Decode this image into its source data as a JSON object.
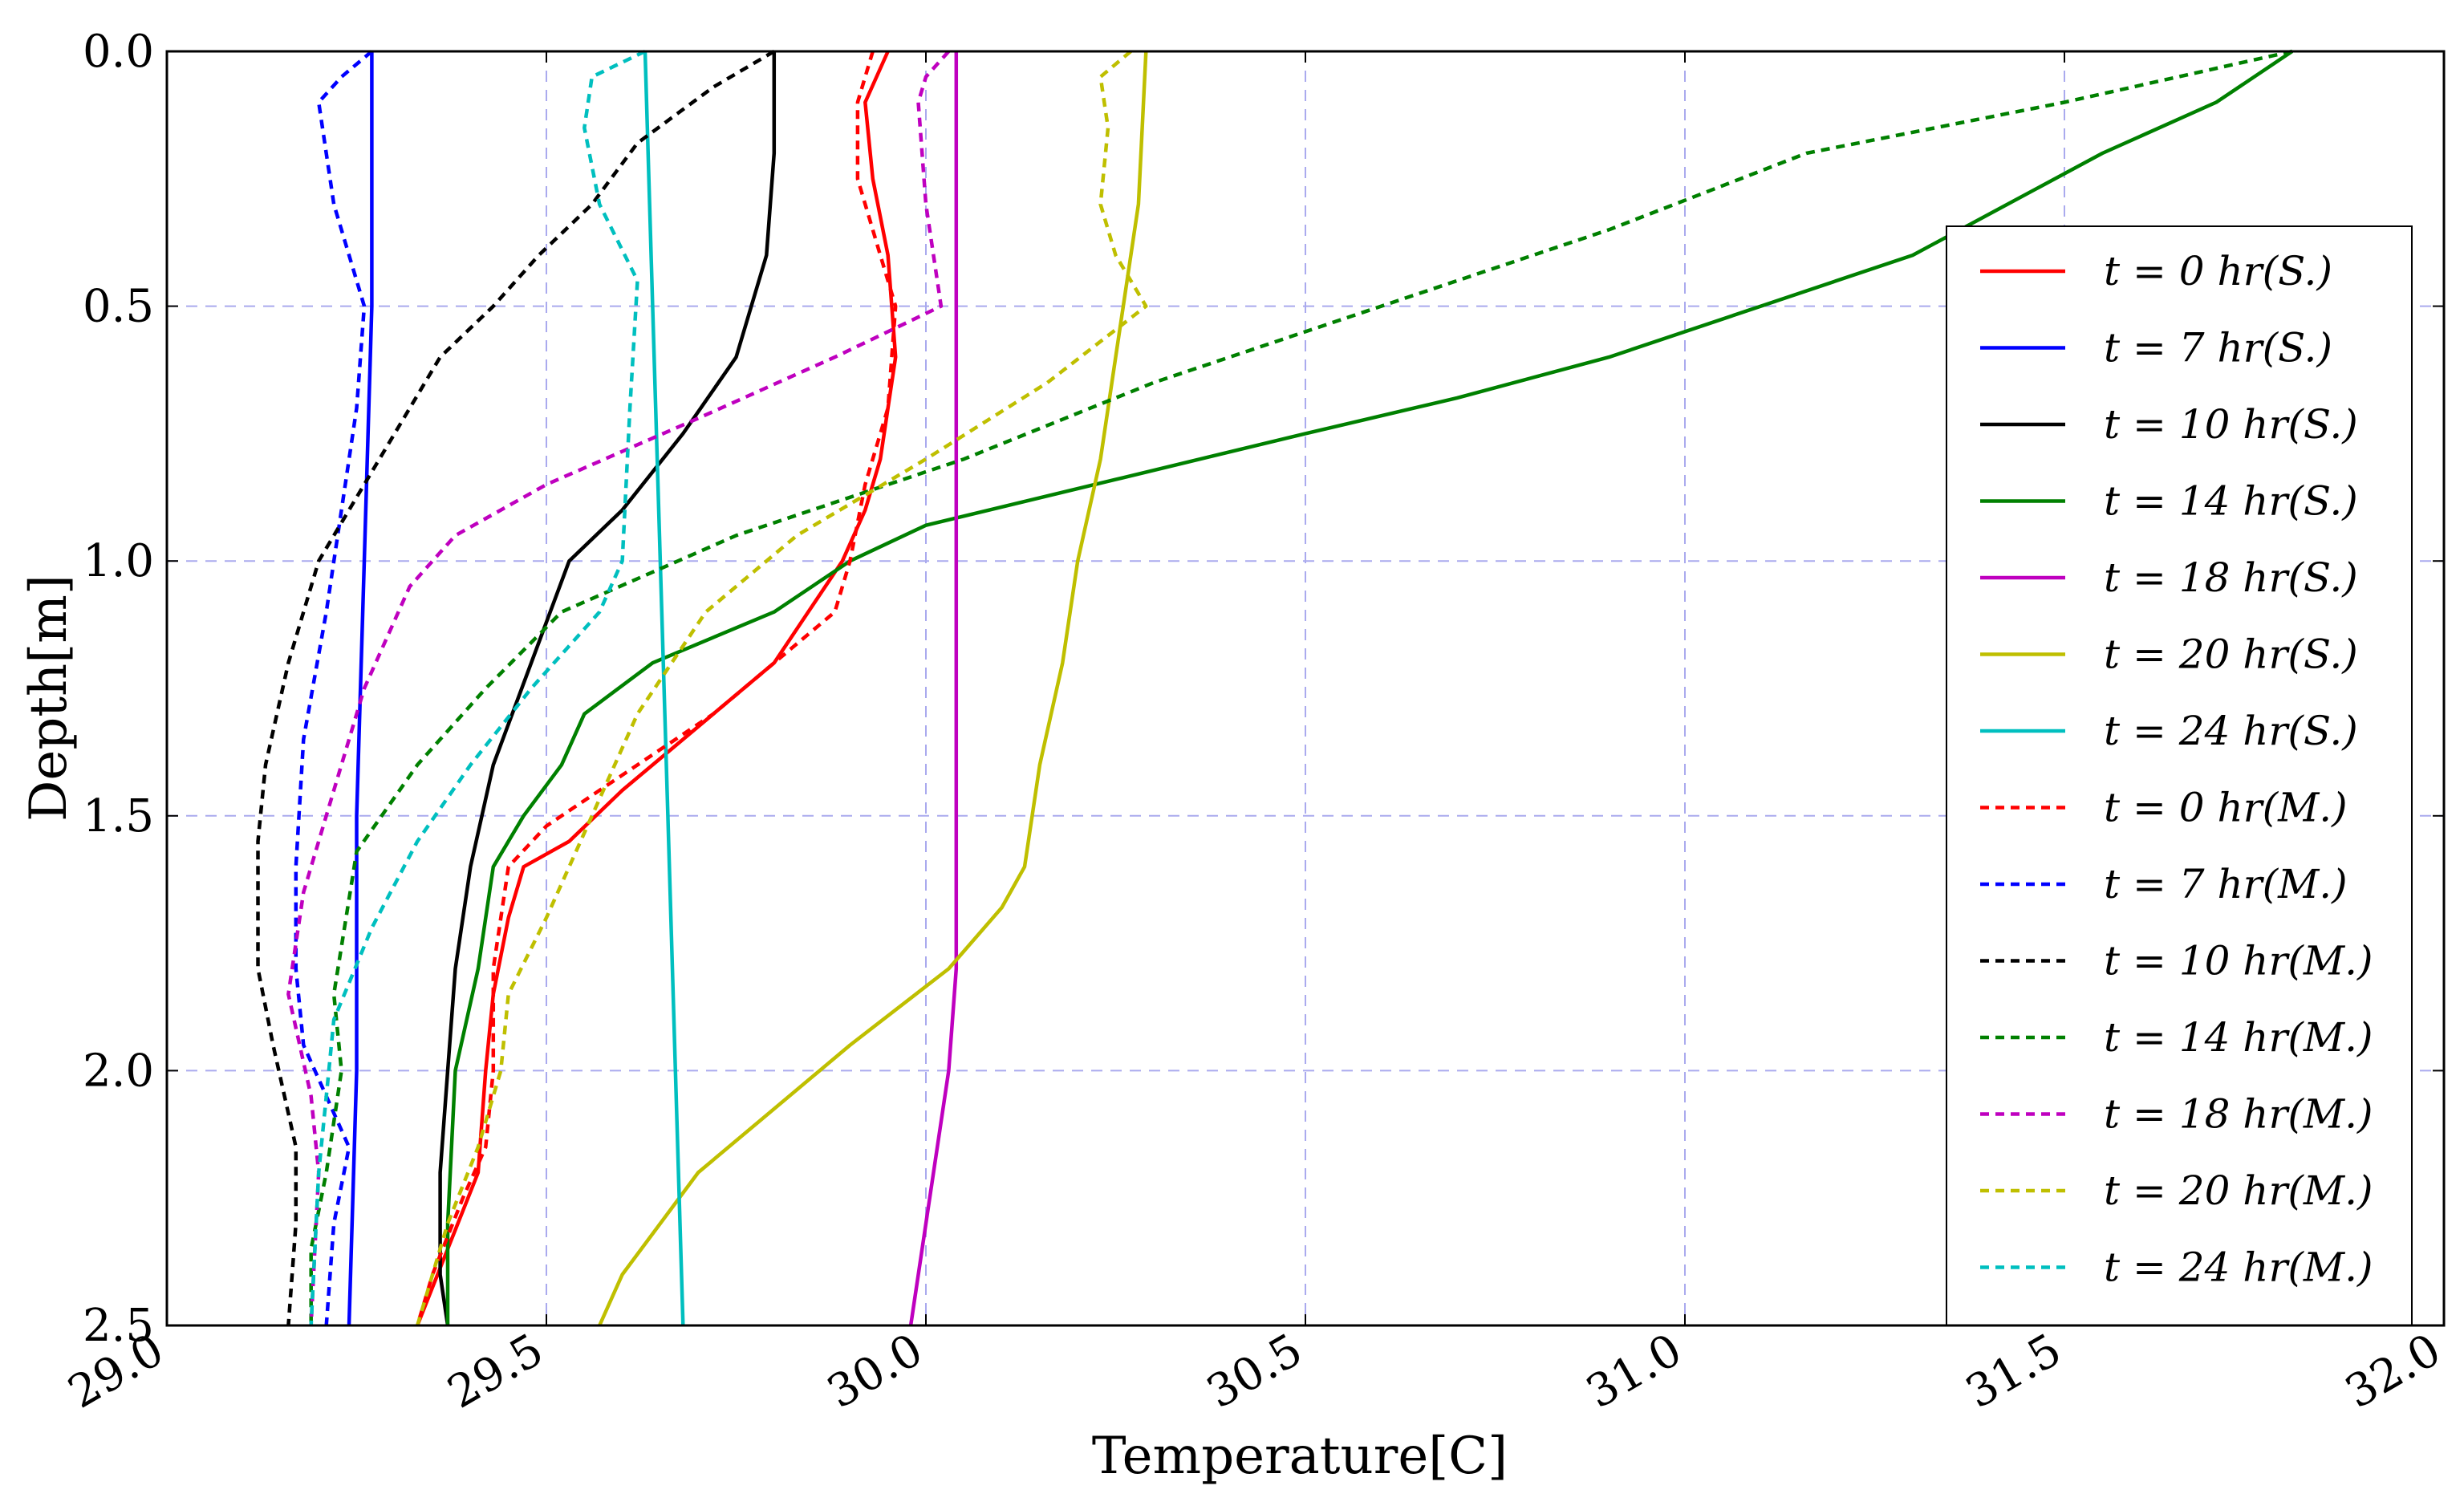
{
  "chart_data": {
    "type": "line",
    "title": "",
    "xlabel": "Temperature[C]",
    "ylabel": "Depth[m]",
    "xlim": [
      29.0,
      32.0
    ],
    "ylim": [
      0.0,
      2.5
    ],
    "y_inverted": true,
    "grid": true,
    "legend_position": "right",
    "x_ticks": [
      "29.0",
      "29.5",
      "30.0",
      "30.5",
      "31.0",
      "31.5",
      "32.0"
    ],
    "y_ticks": [
      "0.0",
      "0.5",
      "1.0",
      "1.5",
      "2.0",
      "2.5"
    ],
    "colors": {
      "red": "#ff0000",
      "blue": "#0000ff",
      "black": "#000000",
      "green": "#008000",
      "magenta": "#bf00bf",
      "olive": "#bfbf00",
      "cyan": "#00bfbf",
      "grid": "#aaaaee",
      "frame": "#000000"
    },
    "series": [
      {
        "name": "t = 0 hr(S.)",
        "color": "red",
        "style": "solid",
        "points": [
          [
            29.95,
            0.0
          ],
          [
            29.92,
            0.1
          ],
          [
            29.93,
            0.25
          ],
          [
            29.95,
            0.4
          ],
          [
            29.96,
            0.6
          ],
          [
            29.94,
            0.8
          ],
          [
            29.92,
            0.9
          ],
          [
            29.89,
            1.0
          ],
          [
            29.8,
            1.2
          ],
          [
            29.68,
            1.35
          ],
          [
            29.6,
            1.45
          ],
          [
            29.53,
            1.55
          ],
          [
            29.47,
            1.6
          ],
          [
            29.45,
            1.7
          ],
          [
            29.43,
            1.85
          ],
          [
            29.42,
            2.0
          ],
          [
            29.41,
            2.2
          ],
          [
            29.37,
            2.35
          ],
          [
            29.33,
            2.5
          ]
        ]
      },
      {
        "name": "t = 7 hr(S.)",
        "color": "blue",
        "style": "solid",
        "points": [
          [
            29.27,
            0.0
          ],
          [
            29.27,
            0.5
          ],
          [
            29.26,
            1.0
          ],
          [
            29.25,
            1.5
          ],
          [
            29.25,
            2.0
          ],
          [
            29.24,
            2.5
          ]
        ]
      },
      {
        "name": "t = 10 hr(S.)",
        "color": "black",
        "style": "solid",
        "points": [
          [
            29.8,
            0.0
          ],
          [
            29.8,
            0.2
          ],
          [
            29.79,
            0.4
          ],
          [
            29.75,
            0.6
          ],
          [
            29.68,
            0.75
          ],
          [
            29.6,
            0.9
          ],
          [
            29.53,
            1.0
          ],
          [
            29.48,
            1.2
          ],
          [
            29.43,
            1.4
          ],
          [
            29.4,
            1.6
          ],
          [
            29.38,
            1.8
          ],
          [
            29.37,
            2.0
          ],
          [
            29.36,
            2.2
          ],
          [
            29.36,
            2.4
          ],
          [
            29.37,
            2.5
          ]
        ]
      },
      {
        "name": "t = 14 hr(S.)",
        "color": "green",
        "style": "solid",
        "points": [
          [
            31.8,
            0.0
          ],
          [
            31.7,
            0.1
          ],
          [
            31.55,
            0.2
          ],
          [
            31.3,
            0.4
          ],
          [
            31.1,
            0.5
          ],
          [
            30.9,
            0.6
          ],
          [
            30.7,
            0.68
          ],
          [
            30.5,
            0.75
          ],
          [
            30.25,
            0.84
          ],
          [
            30.0,
            0.93
          ],
          [
            29.9,
            1.0
          ],
          [
            29.8,
            1.1
          ],
          [
            29.64,
            1.2
          ],
          [
            29.55,
            1.3
          ],
          [
            29.52,
            1.4
          ],
          [
            29.47,
            1.5
          ],
          [
            29.43,
            1.6
          ],
          [
            29.41,
            1.8
          ],
          [
            29.38,
            2.0
          ],
          [
            29.37,
            2.3
          ],
          [
            29.37,
            2.5
          ]
        ]
      },
      {
        "name": "t = 18 hr(S.)",
        "color": "magenta",
        "style": "solid",
        "points": [
          [
            30.04,
            0.0
          ],
          [
            30.04,
            0.5
          ],
          [
            30.04,
            1.0
          ],
          [
            30.04,
            1.5
          ],
          [
            30.04,
            1.8
          ],
          [
            30.03,
            2.0
          ],
          [
            30.0,
            2.3
          ],
          [
            29.98,
            2.5
          ]
        ]
      },
      {
        "name": "t = 20 hr(S.)",
        "color": "olive",
        "style": "solid",
        "points": [
          [
            30.29,
            0.0
          ],
          [
            30.28,
            0.3
          ],
          [
            30.25,
            0.6
          ],
          [
            30.23,
            0.8
          ],
          [
            30.2,
            1.0
          ],
          [
            30.18,
            1.2
          ],
          [
            30.15,
            1.4
          ],
          [
            30.13,
            1.6
          ],
          [
            30.1,
            1.68
          ],
          [
            30.03,
            1.8
          ],
          [
            29.9,
            1.95
          ],
          [
            29.7,
            2.2
          ],
          [
            29.6,
            2.4
          ],
          [
            29.57,
            2.5
          ]
        ]
      },
      {
        "name": "t = 24 hr(S.)",
        "color": "cyan",
        "style": "solid",
        "points": [
          [
            29.63,
            0.0
          ],
          [
            29.64,
            0.5
          ],
          [
            29.65,
            1.0
          ],
          [
            29.66,
            1.5
          ],
          [
            29.67,
            2.0
          ],
          [
            29.68,
            2.5
          ]
        ]
      },
      {
        "name": "t = 0 hr(M.)",
        "color": "red",
        "style": "dashed",
        "points": [
          [
            29.93,
            0.0
          ],
          [
            29.91,
            0.1
          ],
          [
            29.91,
            0.25
          ],
          [
            29.94,
            0.4
          ],
          [
            29.96,
            0.5
          ],
          [
            29.95,
            0.7
          ],
          [
            29.92,
            0.85
          ],
          [
            29.9,
            1.0
          ],
          [
            29.88,
            1.1
          ],
          [
            29.8,
            1.2
          ],
          [
            29.72,
            1.3
          ],
          [
            29.6,
            1.42
          ],
          [
            29.5,
            1.52
          ],
          [
            29.45,
            1.6
          ],
          [
            29.43,
            1.8
          ],
          [
            29.43,
            2.0
          ],
          [
            29.42,
            2.15
          ],
          [
            29.39,
            2.25
          ],
          [
            29.35,
            2.4
          ],
          [
            29.33,
            2.5
          ]
        ]
      },
      {
        "name": "t = 7 hr(M.)",
        "color": "blue",
        "style": "dashed",
        "points": [
          [
            29.27,
            0.0
          ],
          [
            29.23,
            0.05
          ],
          [
            29.2,
            0.1
          ],
          [
            29.22,
            0.3
          ],
          [
            29.25,
            0.45
          ],
          [
            29.26,
            0.5
          ],
          [
            29.25,
            0.7
          ],
          [
            29.23,
            0.9
          ],
          [
            29.21,
            1.1
          ],
          [
            29.18,
            1.35
          ],
          [
            29.17,
            1.6
          ],
          [
            29.17,
            1.8
          ],
          [
            29.18,
            1.95
          ],
          [
            29.21,
            2.05
          ],
          [
            29.24,
            2.15
          ],
          [
            29.22,
            2.3
          ],
          [
            29.21,
            2.5
          ]
        ]
      },
      {
        "name": "t = 10 hr(M.)",
        "color": "black",
        "style": "dashed",
        "points": [
          [
            29.8,
            0.0
          ],
          [
            29.72,
            0.07
          ],
          [
            29.62,
            0.18
          ],
          [
            29.56,
            0.3
          ],
          [
            29.49,
            0.4
          ],
          [
            29.43,
            0.5
          ],
          [
            29.36,
            0.6
          ],
          [
            29.3,
            0.75
          ],
          [
            29.24,
            0.9
          ],
          [
            29.2,
            1.0
          ],
          [
            29.16,
            1.2
          ],
          [
            29.13,
            1.4
          ],
          [
            29.12,
            1.55
          ],
          [
            29.12,
            1.8
          ],
          [
            29.14,
            1.95
          ],
          [
            29.17,
            2.15
          ],
          [
            29.17,
            2.3
          ],
          [
            29.16,
            2.5
          ]
        ]
      },
      {
        "name": "t = 14 hr(M.)",
        "color": "green",
        "style": "dashed",
        "points": [
          [
            31.8,
            0.0
          ],
          [
            31.5,
            0.1
          ],
          [
            31.16,
            0.2
          ],
          [
            30.9,
            0.35
          ],
          [
            30.6,
            0.5
          ],
          [
            30.3,
            0.65
          ],
          [
            30.05,
            0.8
          ],
          [
            29.75,
            0.95
          ],
          [
            29.52,
            1.1
          ],
          [
            29.42,
            1.25
          ],
          [
            29.33,
            1.4
          ],
          [
            29.25,
            1.57
          ],
          [
            29.22,
            1.85
          ],
          [
            29.23,
            2.0
          ],
          [
            29.21,
            2.2
          ],
          [
            29.19,
            2.35
          ],
          [
            29.19,
            2.5
          ]
        ]
      },
      {
        "name": "t = 18 hr(M.)",
        "color": "magenta",
        "style": "dashed",
        "points": [
          [
            30.03,
            0.0
          ],
          [
            30.0,
            0.05
          ],
          [
            29.99,
            0.1
          ],
          [
            30.0,
            0.3
          ],
          [
            30.02,
            0.5
          ],
          [
            29.88,
            0.6
          ],
          [
            29.7,
            0.72
          ],
          [
            29.5,
            0.85
          ],
          [
            29.38,
            0.95
          ],
          [
            29.32,
            1.05
          ],
          [
            29.26,
            1.25
          ],
          [
            29.22,
            1.45
          ],
          [
            29.18,
            1.65
          ],
          [
            29.16,
            1.85
          ],
          [
            29.19,
            2.05
          ],
          [
            29.2,
            2.2
          ],
          [
            29.19,
            2.5
          ]
        ]
      },
      {
        "name": "t = 20 hr(M.)",
        "color": "olive",
        "style": "dashed",
        "points": [
          [
            30.27,
            0.0
          ],
          [
            30.23,
            0.05
          ],
          [
            30.24,
            0.15
          ],
          [
            30.23,
            0.3
          ],
          [
            30.25,
            0.4
          ],
          [
            30.29,
            0.5
          ],
          [
            30.16,
            0.65
          ],
          [
            30.0,
            0.8
          ],
          [
            29.83,
            0.95
          ],
          [
            29.71,
            1.1
          ],
          [
            29.62,
            1.3
          ],
          [
            29.56,
            1.5
          ],
          [
            29.5,
            1.7
          ],
          [
            29.45,
            1.85
          ],
          [
            29.44,
            2.0
          ],
          [
            29.41,
            2.15
          ],
          [
            29.37,
            2.3
          ],
          [
            29.33,
            2.5
          ]
        ]
      },
      {
        "name": "t = 24 hr(M.)",
        "color": "cyan",
        "style": "dashed",
        "points": [
          [
            29.63,
            0.0
          ],
          [
            29.56,
            0.05
          ],
          [
            29.55,
            0.15
          ],
          [
            29.57,
            0.3
          ],
          [
            29.62,
            0.45
          ],
          [
            29.61,
            0.7
          ],
          [
            29.6,
            1.0
          ],
          [
            29.57,
            1.1
          ],
          [
            29.48,
            1.25
          ],
          [
            29.4,
            1.4
          ],
          [
            29.33,
            1.55
          ],
          [
            29.27,
            1.72
          ],
          [
            29.22,
            1.9
          ],
          [
            29.21,
            2.05
          ],
          [
            29.2,
            2.2
          ],
          [
            29.19,
            2.5
          ]
        ]
      }
    ]
  }
}
